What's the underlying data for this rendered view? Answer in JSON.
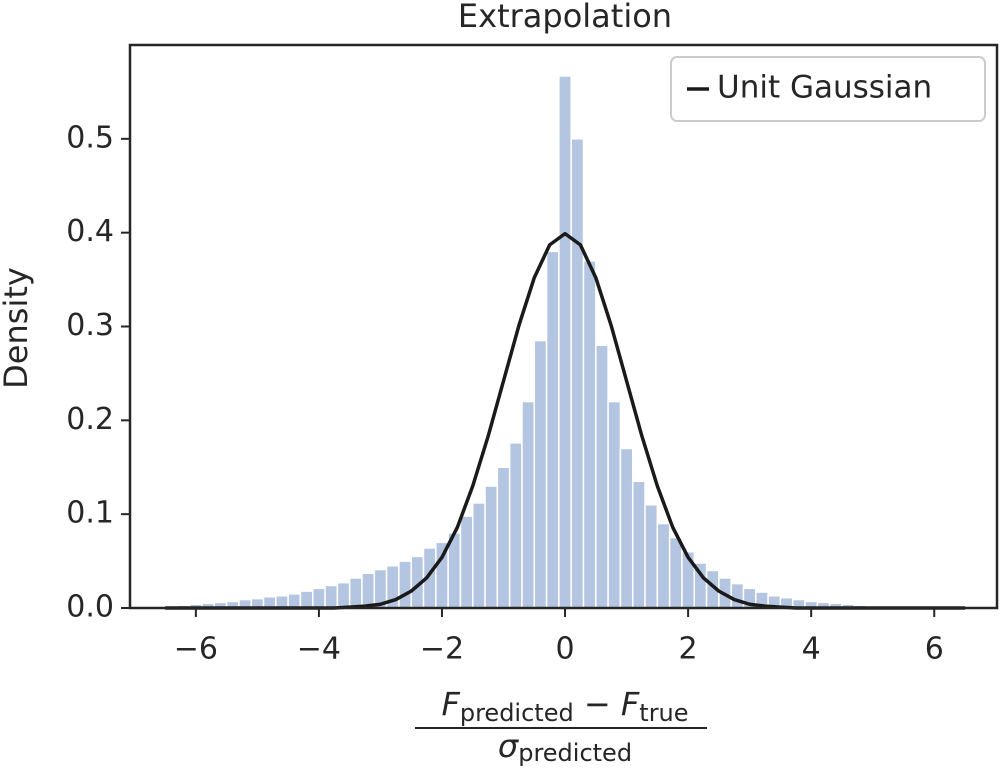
{
  "chart_data": {
    "type": "histogram",
    "title": "Extrapolation",
    "ylabel": "Density",
    "xlabel": {
      "numerator": [
        "F",
        "predicted",
        " − ",
        "F",
        "true"
      ],
      "denominator": [
        "σ",
        "predicted"
      ]
    },
    "bins": [
      -6.5,
      -6.3,
      -6.1,
      -5.9,
      -5.7,
      -5.5,
      -5.3,
      -5.1,
      -4.9,
      -4.7,
      -4.5,
      -4.3,
      -4.1,
      -3.9,
      -3.7,
      -3.5,
      -3.3,
      -3.1,
      -2.9,
      -2.7,
      -2.5,
      -2.3,
      -2.1,
      -1.9,
      -1.7,
      -1.5,
      -1.3,
      -1.1,
      -0.9,
      -0.7,
      -0.5,
      -0.3,
      -0.1,
      0.1,
      0.3,
      0.5,
      0.7,
      0.9,
      1.1,
      1.3,
      1.5,
      1.7,
      1.9,
      2.1,
      2.3,
      2.5,
      2.7,
      2.9,
      3.1,
      3.3,
      3.5,
      3.7,
      3.9,
      4.1,
      4.3,
      4.5,
      4.7,
      4.9,
      5.1,
      5.3,
      5.5,
      5.7,
      5.9,
      6.1,
      6.3,
      6.5
    ],
    "values": [
      0.002,
      0.003,
      0.004,
      0.005,
      0.006,
      0.007,
      0.009,
      0.01,
      0.012,
      0.013,
      0.015,
      0.018,
      0.021,
      0.024,
      0.027,
      0.032,
      0.037,
      0.041,
      0.045,
      0.05,
      0.055,
      0.064,
      0.07,
      0.08,
      0.098,
      0.112,
      0.13,
      0.15,
      0.176,
      0.22,
      0.285,
      0.38,
      0.567,
      0.5,
      0.37,
      0.28,
      0.22,
      0.17,
      0.135,
      0.11,
      0.09,
      0.075,
      0.06,
      0.048,
      0.04,
      0.032,
      0.026,
      0.021,
      0.017,
      0.013,
      0.011,
      0.009,
      0.007,
      0.006,
      0.005,
      0.004,
      0.003,
      0.002,
      0.002,
      0.001,
      0.001,
      0.001,
      0.001,
      0,
      0
    ],
    "color": "#b3c5e1",
    "series": [
      {
        "name": "Unit Gaussian",
        "type": "line",
        "color": "#1a1a1a",
        "x": [
          -6.5,
          -6.25,
          -6,
          -5.75,
          -5.5,
          -5.25,
          -5,
          -4.75,
          -4.5,
          -4.25,
          -4,
          -3.75,
          -3.5,
          -3.25,
          -3,
          -2.75,
          -2.5,
          -2.25,
          -2,
          -1.75,
          -1.5,
          -1.25,
          -1,
          -0.75,
          -0.5,
          -0.25,
          0,
          0.25,
          0.5,
          0.75,
          1,
          1.25,
          1.5,
          1.75,
          2,
          2.25,
          2.5,
          2.75,
          3,
          3.25,
          3.5,
          3.75,
          4,
          4.25,
          4.5,
          4.75,
          5,
          5.25,
          5.5,
          5.75,
          6,
          6.25,
          6.5
        ],
        "values": [
          0,
          0,
          0,
          0,
          0,
          0,
          0,
          0,
          0,
          0,
          0,
          0,
          0.001,
          0.002,
          0.004,
          0.009,
          0.018,
          0.032,
          0.054,
          0.086,
          0.13,
          0.183,
          0.242,
          0.301,
          0.352,
          0.387,
          0.399,
          0.387,
          0.352,
          0.301,
          0.242,
          0.183,
          0.13,
          0.086,
          0.054,
          0.032,
          0.018,
          0.009,
          0.004,
          0.002,
          0.001,
          0,
          0,
          0,
          0,
          0,
          0,
          0,
          0,
          0,
          0,
          0,
          0
        ]
      }
    ],
    "xlim": [
      -7.07,
      7.02
    ],
    "ylim": [
      0,
      0.6
    ],
    "xticks": [
      {
        "value": -6,
        "label": "−6"
      },
      {
        "value": -4,
        "label": "−4"
      },
      {
        "value": -2,
        "label": "−2"
      },
      {
        "value": 0,
        "label": "0"
      },
      {
        "value": 2,
        "label": "2"
      },
      {
        "value": 4,
        "label": "4"
      },
      {
        "value": 6,
        "label": "6"
      }
    ],
    "yticks": [
      {
        "value": 0,
        "label": "0.0"
      },
      0.1,
      0.2,
      0.3,
      0.4,
      0.5
    ],
    "legend": "upper right"
  }
}
